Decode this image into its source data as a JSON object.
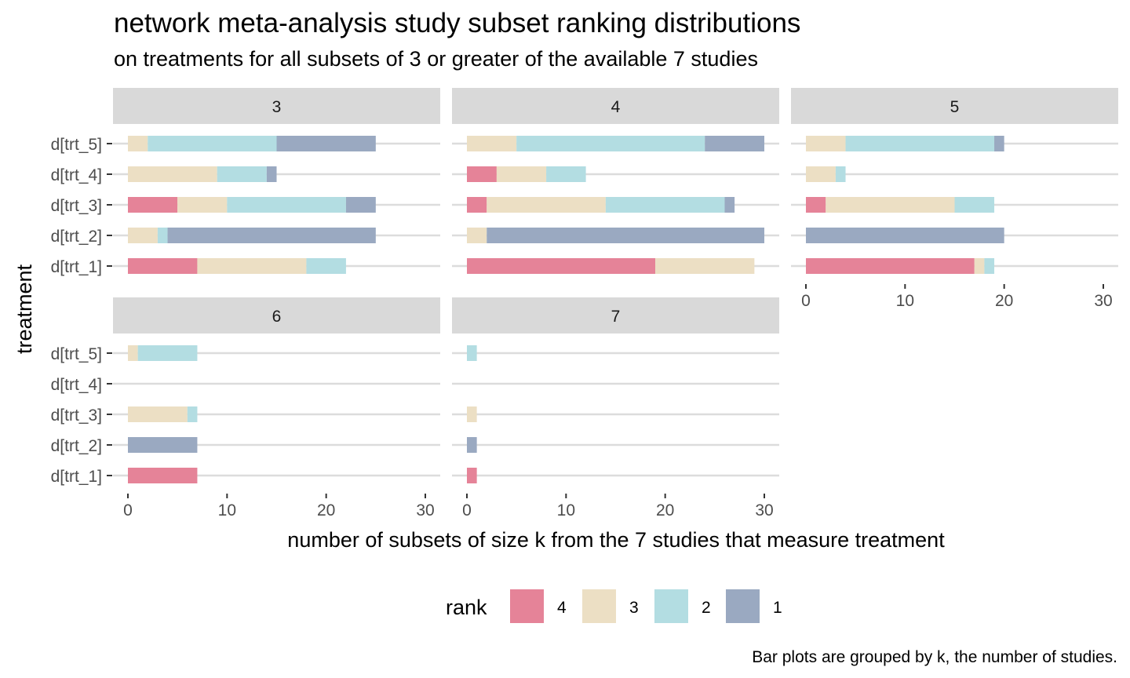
{
  "chart_data": {
    "type": "bar",
    "title": "network meta-analysis study subset ranking distributions",
    "subtitle": "on treatments for all subsets of 3 or greater of the available 7 studies",
    "caption": "Bar plots are grouped by k, the number of studies.",
    "xlabel": "number of subsets of size k from the 7 studies that measure treatment",
    "ylabel": "treatment",
    "xlim": [
      0,
      31
    ],
    "x_ticks": [
      0,
      10,
      20,
      30
    ],
    "categories": [
      "d[trt_5]",
      "d[trt_4]",
      "d[trt_3]",
      "d[trt_2]",
      "d[trt_1]"
    ],
    "legend": {
      "title": "rank",
      "placement": "bottom",
      "items": [
        {
          "label": "4",
          "color": "#e58398"
        },
        {
          "label": "3",
          "color": "#ecdfc4"
        },
        {
          "label": "2",
          "color": "#b3dde2"
        },
        {
          "label": "1",
          "color": "#9aa9c1"
        }
      ]
    },
    "stack_order": [
      "4",
      "3",
      "2",
      "1"
    ],
    "grid": true,
    "facets": [
      {
        "k": "3",
        "values": {
          "d[trt_5]": {
            "4": 0,
            "3": 2,
            "2": 13,
            "1": 10
          },
          "d[trt_4]": {
            "4": 0,
            "3": 9,
            "2": 5,
            "1": 1
          },
          "d[trt_3]": {
            "4": 5,
            "3": 5,
            "2": 12,
            "1": 3
          },
          "d[trt_2]": {
            "4": 0,
            "3": 3,
            "2": 1,
            "1": 21
          },
          "d[trt_1]": {
            "4": 7,
            "3": 11,
            "2": 4,
            "1": 0
          }
        }
      },
      {
        "k": "4",
        "values": {
          "d[trt_5]": {
            "4": 0,
            "3": 5,
            "2": 19,
            "1": 6
          },
          "d[trt_4]": {
            "4": 3,
            "3": 5,
            "2": 4,
            "1": 0
          },
          "d[trt_3]": {
            "4": 2,
            "3": 12,
            "2": 12,
            "1": 1
          },
          "d[trt_2]": {
            "4": 0,
            "3": 2,
            "2": 0,
            "1": 28
          },
          "d[trt_1]": {
            "4": 19,
            "3": 10,
            "2": 0,
            "1": 0
          }
        }
      },
      {
        "k": "5",
        "values": {
          "d[trt_5]": {
            "4": 0,
            "3": 4,
            "2": 15,
            "1": 1
          },
          "d[trt_4]": {
            "4": 0,
            "3": 3,
            "2": 1,
            "1": 0
          },
          "d[trt_3]": {
            "4": 2,
            "3": 13,
            "2": 4,
            "1": 0
          },
          "d[trt_2]": {
            "4": 0,
            "3": 0,
            "2": 0,
            "1": 20
          },
          "d[trt_1]": {
            "4": 17,
            "3": 1,
            "2": 1,
            "1": 0
          }
        }
      },
      {
        "k": "6",
        "values": {
          "d[trt_5]": {
            "4": 0,
            "3": 1,
            "2": 6,
            "1": 0
          },
          "d[trt_4]": {
            "4": 0,
            "3": 0,
            "2": 0,
            "1": 0
          },
          "d[trt_3]": {
            "4": 0,
            "3": 6,
            "2": 1,
            "1": 0
          },
          "d[trt_2]": {
            "4": 0,
            "3": 0,
            "2": 0,
            "1": 7
          },
          "d[trt_1]": {
            "4": 7,
            "3": 0,
            "2": 0,
            "1": 0
          }
        }
      },
      {
        "k": "7",
        "values": {
          "d[trt_5]": {
            "4": 0,
            "3": 0,
            "2": 1,
            "1": 0
          },
          "d[trt_4]": {
            "4": 0,
            "3": 0,
            "2": 0,
            "1": 0
          },
          "d[trt_3]": {
            "4": 0,
            "3": 1,
            "2": 0,
            "1": 0
          },
          "d[trt_2]": {
            "4": 0,
            "3": 0,
            "2": 0,
            "1": 1
          },
          "d[trt_1]": {
            "4": 1,
            "3": 0,
            "2": 0,
            "1": 0
          }
        }
      }
    ]
  }
}
